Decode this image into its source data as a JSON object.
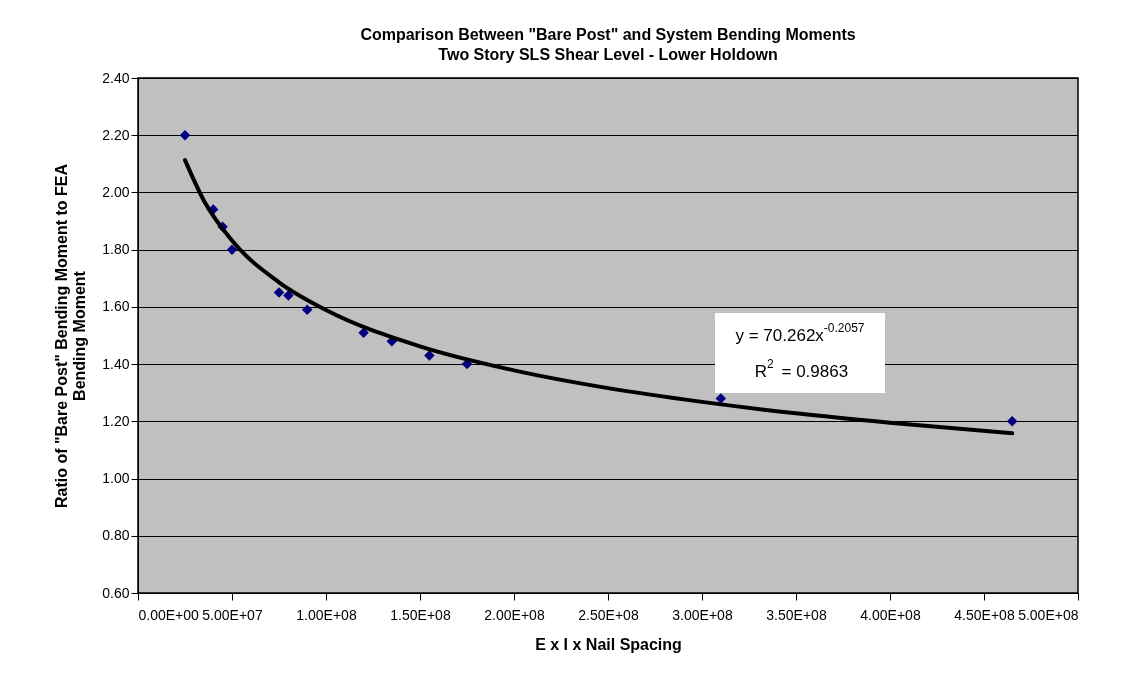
{
  "chart_data": {
    "type": "scatter",
    "title": "Comparison Between \"Bare Post\" and System Bending Moments",
    "subtitle": "Two Story SLS Shear Level - Lower Holdown",
    "xlabel": "E x I x Nail Spacing",
    "ylabel": "Ratio of \"Bare Post\" Bending Moment to FEA\nBending Moment",
    "series": [
      {
        "color": "#000080",
        "marker": "diamond",
        "x": [
          25000000,
          40000000,
          45000000,
          50000000,
          75000000,
          80000000,
          90000000,
          120000000,
          135000000,
          155000000,
          175000000,
          310000000,
          465000000
        ],
        "values": [
          2.2,
          1.94,
          1.88,
          1.8,
          1.65,
          1.64,
          1.59,
          1.51,
          1.48,
          1.43,
          1.4,
          1.28,
          1.2
        ]
      },
      {
        "type": "line",
        "color": "#000000",
        "marker": "none",
        "line_style": "solid",
        "x": [
          25000000,
          35000000,
          50000000,
          75000000,
          100000000,
          150000000,
          200000000,
          250000000,
          300000000,
          350000000,
          400000000,
          465000000
        ],
        "values": [
          2.113,
          1.972,
          1.832,
          1.686,
          1.589,
          1.462,
          1.378,
          1.316,
          1.268,
          1.228,
          1.195,
          1.158
        ]
      }
    ],
    "annotations": [
      "y = 70.262x$^{-0.2057}$",
      "R$^{2}$ = 0.9863"
    ],
    "xlim": [
      0,
      500000000
    ],
    "xticks": [
      {
        "value": 0,
        "label": "0.00E+00"
      },
      {
        "value": 50000000,
        "label": "5.00E+07"
      },
      {
        "value": 100000000,
        "label": "1.00E+08"
      },
      {
        "value": 150000000,
        "label": "1.50E+08"
      },
      {
        "value": 200000000,
        "label": "2.00E+08"
      },
      {
        "value": 250000000,
        "label": "2.50E+08"
      },
      {
        "value": 300000000,
        "label": "3.00E+08"
      },
      {
        "value": 350000000,
        "label": "3.50E+08"
      },
      {
        "value": 400000000,
        "label": "4.00E+08"
      },
      {
        "value": 450000000,
        "label": "4.50E+08"
      },
      {
        "value": 500000000,
        "label": "5.00E+08"
      }
    ],
    "ylim": [
      0.6,
      2.4
    ],
    "yticks": [
      {
        "value": 0.6,
        "label": "0.60"
      },
      {
        "value": 0.8,
        "label": "0.80"
      },
      {
        "value": 1.0,
        "label": "1.00"
      },
      {
        "value": 1.2,
        "label": "1.20"
      },
      {
        "value": 1.4,
        "label": "1.40"
      },
      {
        "value": 1.6,
        "label": "1.60"
      },
      {
        "value": 1.8,
        "label": "1.80"
      },
      {
        "value": 2.0,
        "label": "2.00"
      },
      {
        "value": 2.2,
        "label": "2.20"
      },
      {
        "value": 2.4,
        "label": "2.40"
      }
    ],
    "grid": "y"
  }
}
